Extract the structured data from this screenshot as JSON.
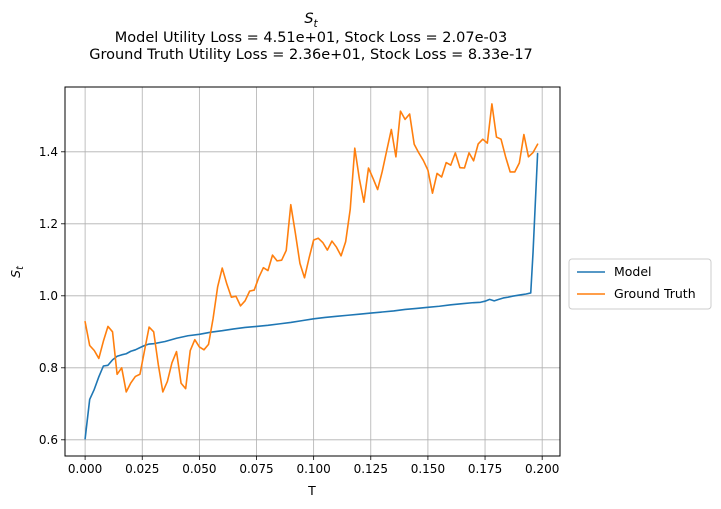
{
  "chart_data": {
    "type": "line",
    "title_main": "S",
    "title_sub": "t",
    "subtitle_line1": "Model Utility Loss = 4.51e+01, Stock Loss = 2.07e-03",
    "subtitle_line2": "Ground Truth Utility Loss = 2.36e+01, Stock Loss = 8.33e-17",
    "xlabel": "T",
    "ylabel_main": "S",
    "ylabel_sub": "t",
    "xlim": [
      -0.0088,
      0.2078
    ],
    "ylim": [
      0.555,
      1.58
    ],
    "xticks": [
      0.0,
      0.025,
      0.05,
      0.075,
      0.1,
      0.125,
      0.15,
      0.175,
      0.2
    ],
    "xtick_labels": [
      "0.000",
      "0.025",
      "0.050",
      "0.075",
      "0.100",
      "0.125",
      "0.150",
      "0.175",
      "0.200"
    ],
    "yticks": [
      0.6,
      0.8,
      1.0,
      1.2,
      1.4
    ],
    "ytick_labels": [
      "0.6",
      "0.8",
      "1.0",
      "1.2",
      "1.4"
    ],
    "grid": true,
    "legend_position": "outside-right",
    "series": [
      {
        "name": "Model",
        "color": "#1f77b4",
        "x": [
          0.0,
          0.002,
          0.004,
          0.006,
          0.008,
          0.01,
          0.012,
          0.014,
          0.016,
          0.018,
          0.02,
          0.022,
          0.024,
          0.026,
          0.028,
          0.03,
          0.035,
          0.04,
          0.045,
          0.05,
          0.055,
          0.06,
          0.065,
          0.07,
          0.075,
          0.08,
          0.085,
          0.09,
          0.095,
          0.1,
          0.105,
          0.11,
          0.115,
          0.12,
          0.125,
          0.13,
          0.135,
          0.14,
          0.145,
          0.15,
          0.155,
          0.16,
          0.165,
          0.17,
          0.173,
          0.175,
          0.177,
          0.179,
          0.181,
          0.183,
          0.185,
          0.187,
          0.189,
          0.191,
          0.193,
          0.195,
          0.196,
          0.198
        ],
        "values": [
          0.603,
          0.712,
          0.74,
          0.775,
          0.805,
          0.807,
          0.822,
          0.832,
          0.836,
          0.839,
          0.846,
          0.85,
          0.856,
          0.862,
          0.866,
          0.867,
          0.873,
          0.882,
          0.889,
          0.893,
          0.899,
          0.903,
          0.908,
          0.912,
          0.915,
          0.918,
          0.922,
          0.926,
          0.931,
          0.936,
          0.94,
          0.943,
          0.946,
          0.949,
          0.952,
          0.955,
          0.958,
          0.962,
          0.965,
          0.968,
          0.971,
          0.975,
          0.978,
          0.981,
          0.982,
          0.985,
          0.99,
          0.986,
          0.99,
          0.994,
          0.996,
          0.999,
          1.001,
          1.003,
          1.005,
          1.008,
          1.12,
          1.395
        ]
      },
      {
        "name": "Ground Truth",
        "color": "#ff7f0e",
        "x": [
          0.0,
          0.002,
          0.004,
          0.006,
          0.008,
          0.01,
          0.012,
          0.014,
          0.016,
          0.018,
          0.02,
          0.022,
          0.024,
          0.026,
          0.028,
          0.03,
          0.032,
          0.034,
          0.036,
          0.038,
          0.04,
          0.042,
          0.044,
          0.046,
          0.048,
          0.05,
          0.052,
          0.054,
          0.056,
          0.058,
          0.06,
          0.062,
          0.064,
          0.066,
          0.068,
          0.07,
          0.072,
          0.074,
          0.076,
          0.078,
          0.08,
          0.082,
          0.084,
          0.086,
          0.088,
          0.09,
          0.092,
          0.094,
          0.096,
          0.098,
          0.1,
          0.102,
          0.104,
          0.106,
          0.108,
          0.11,
          0.112,
          0.114,
          0.116,
          0.118,
          0.12,
          0.122,
          0.124,
          0.126,
          0.128,
          0.13,
          0.132,
          0.134,
          0.136,
          0.138,
          0.14,
          0.142,
          0.144,
          0.146,
          0.148,
          0.15,
          0.152,
          0.154,
          0.156,
          0.158,
          0.16,
          0.162,
          0.164,
          0.166,
          0.168,
          0.17,
          0.172,
          0.174,
          0.176,
          0.178,
          0.18,
          0.182,
          0.184,
          0.186,
          0.188,
          0.19,
          0.192,
          0.194,
          0.196,
          0.198
        ],
        "values": [
          0.928,
          0.862,
          0.848,
          0.826,
          0.874,
          0.915,
          0.9,
          0.782,
          0.8,
          0.733,
          0.758,
          0.776,
          0.782,
          0.848,
          0.913,
          0.9,
          0.81,
          0.733,
          0.762,
          0.814,
          0.845,
          0.757,
          0.742,
          0.848,
          0.878,
          0.858,
          0.85,
          0.865,
          0.937,
          1.025,
          1.077,
          1.033,
          0.996,
          0.999,
          0.972,
          0.986,
          1.013,
          1.016,
          1.051,
          1.078,
          1.07,
          1.113,
          1.097,
          1.099,
          1.126,
          1.253,
          1.174,
          1.09,
          1.05,
          1.105,
          1.155,
          1.16,
          1.148,
          1.127,
          1.152,
          1.135,
          1.111,
          1.15,
          1.24,
          1.41,
          1.325,
          1.26,
          1.355,
          1.326,
          1.295,
          1.345,
          1.404,
          1.462,
          1.386,
          1.513,
          1.49,
          1.505,
          1.421,
          1.397,
          1.376,
          1.349,
          1.285,
          1.34,
          1.33,
          1.37,
          1.363,
          1.397,
          1.356,
          1.355,
          1.397,
          1.375,
          1.422,
          1.435,
          1.424,
          1.533,
          1.441,
          1.435,
          1.386,
          1.344,
          1.344,
          1.369,
          1.448,
          1.386,
          1.398,
          1.421
        ]
      }
    ]
  }
}
